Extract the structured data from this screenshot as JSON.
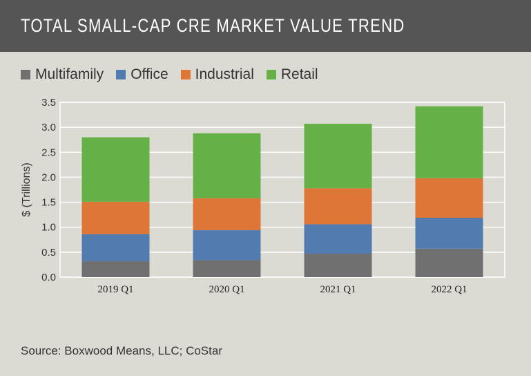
{
  "chart_data": {
    "type": "bar",
    "stacked": true,
    "title": "TOTAL SMALL-CAP CRE MARKET VALUE TREND",
    "xlabel": "",
    "ylabel": "$ (Trillions)",
    "ylim": [
      0,
      3.5
    ],
    "yticks": [
      "0.0",
      "0.5",
      "1.0",
      "1.5",
      "2.0",
      "2.5",
      "3.0",
      "3.5"
    ],
    "grid": true,
    "legend_position": "top",
    "categories": [
      "2019 Q1",
      "2020 Q1",
      "2021 Q1",
      "2022 Q1"
    ],
    "series": [
      {
        "name": "Multifamily",
        "color": "#707070",
        "values": [
          0.32,
          0.34,
          0.47,
          0.57
        ]
      },
      {
        "name": "Office",
        "color": "#527caf",
        "values": [
          0.54,
          0.6,
          0.59,
          0.62
        ]
      },
      {
        "name": "Industrial",
        "color": "#dd7637",
        "values": [
          0.65,
          0.64,
          0.72,
          0.79
        ]
      },
      {
        "name": "Retail",
        "color": "#65b148",
        "values": [
          1.29,
          1.3,
          1.29,
          1.44
        ]
      }
    ],
    "source": "Source: Boxwood Means, LLC; CoStar"
  }
}
